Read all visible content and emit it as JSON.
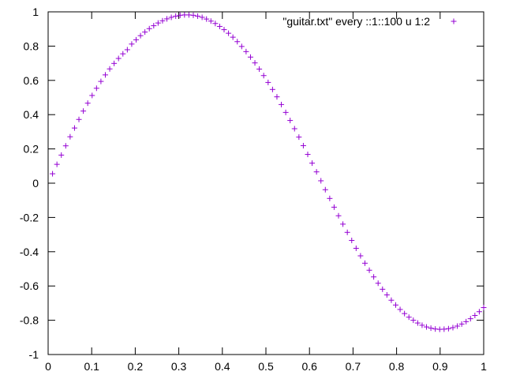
{
  "chart_data": {
    "type": "scatter",
    "title": "",
    "xlabel": "",
    "ylabel": "",
    "xlim": [
      0,
      1
    ],
    "ylim": [
      -1,
      1
    ],
    "grid": false,
    "legend": "top-right",
    "x_ticks": [
      "0",
      "0.1",
      "0.2",
      "0.3",
      "0.4",
      "0.5",
      "0.6",
      "0.7",
      "0.8",
      "0.9",
      "1"
    ],
    "y_ticks": [
      "1",
      "0.8",
      "0.6",
      "0.4",
      "0.2",
      "0",
      "-0.2",
      "-0.4",
      "-0.6",
      "-0.8",
      "-1"
    ],
    "series": [
      {
        "name": "\"guitar.txt\" every ::1::100 u 1:2",
        "color": "#9400d3",
        "marker": "+",
        "x": [
          0.0101,
          0.0202,
          0.0303,
          0.0404,
          0.0505,
          0.0606,
          0.0707,
          0.0808,
          0.0909,
          0.101,
          0.1111,
          0.1212,
          0.1313,
          0.1414,
          0.1515,
          0.1616,
          0.1717,
          0.1818,
          0.1919,
          0.202,
          0.2121,
          0.2222,
          0.2323,
          0.2424,
          0.2525,
          0.2626,
          0.2727,
          0.2828,
          0.2929,
          0.303,
          0.3131,
          0.3232,
          0.3333,
          0.3434,
          0.3535,
          0.3636,
          0.3737,
          0.3838,
          0.3939,
          0.404,
          0.4141,
          0.4242,
          0.4343,
          0.4444,
          0.4545,
          0.4646,
          0.4747,
          0.4848,
          0.4949,
          0.5051,
          0.5152,
          0.5253,
          0.5354,
          0.5455,
          0.5556,
          0.5657,
          0.5758,
          0.5859,
          0.596,
          0.6061,
          0.6162,
          0.6263,
          0.6364,
          0.6465,
          0.6566,
          0.6667,
          0.6768,
          0.6869,
          0.697,
          0.7071,
          0.7172,
          0.7273,
          0.7374,
          0.7475,
          0.7576,
          0.7677,
          0.7778,
          0.7879,
          0.798,
          0.8081,
          0.8182,
          0.8283,
          0.8384,
          0.8485,
          0.8586,
          0.8687,
          0.8788,
          0.8889,
          0.899,
          0.9091,
          0.9192,
          0.9293,
          0.9394,
          0.9495,
          0.9596,
          0.9697,
          0.9798,
          0.9899,
          1.0
        ],
        "y": [
          0.055,
          0.11,
          0.164,
          0.218,
          0.271,
          0.322,
          0.372,
          0.421,
          0.467,
          0.512,
          0.554,
          0.594,
          0.632,
          0.667,
          0.699,
          0.728,
          0.755,
          0.779,
          0.812,
          0.837,
          0.861,
          0.882,
          0.902,
          0.919,
          0.935,
          0.948,
          0.959,
          0.968,
          0.975,
          0.98,
          0.982,
          0.982,
          0.98,
          0.975,
          0.968,
          0.958,
          0.946,
          0.932,
          0.915,
          0.896,
          0.875,
          0.852,
          0.826,
          0.798,
          0.768,
          0.736,
          0.702,
          0.666,
          0.628,
          0.588,
          0.547,
          0.504,
          0.459,
          0.413,
          0.366,
          0.318,
          0.269,
          0.219,
          0.168,
          0.117,
          0.066,
          0.014,
          -0.038,
          -0.089,
          -0.14,
          -0.19,
          -0.239,
          -0.287,
          -0.334,
          -0.38,
          -0.424,
          -0.467,
          -0.508,
          -0.547,
          -0.584,
          -0.619,
          -0.652,
          -0.683,
          -0.711,
          -0.737,
          -0.761,
          -0.782,
          -0.8,
          -0.816,
          -0.829,
          -0.839,
          -0.846,
          -0.851,
          -0.853,
          -0.852,
          -0.849,
          -0.843,
          -0.834,
          -0.822,
          -0.808,
          -0.791,
          -0.772,
          -0.75,
          -0.726
        ]
      }
    ]
  }
}
